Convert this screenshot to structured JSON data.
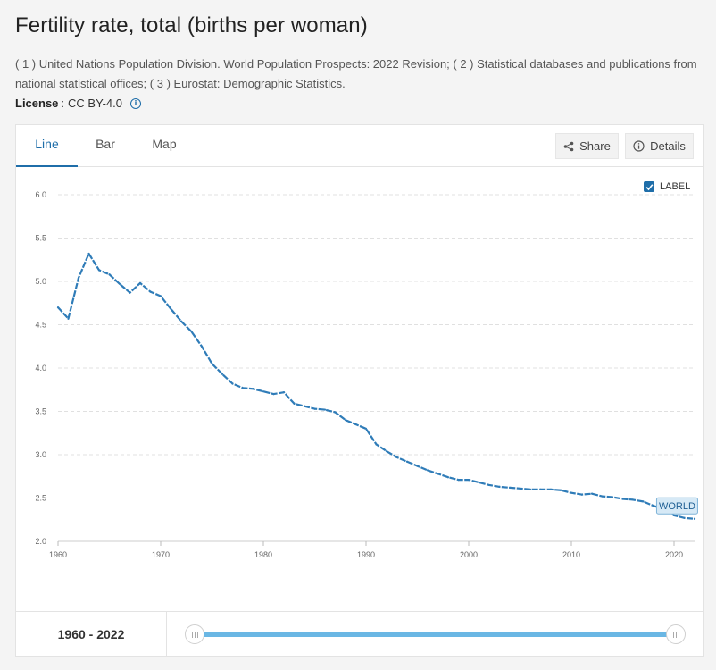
{
  "page": {
    "title": "Fertility rate, total (births per woman)",
    "sources": "( 1 ) United Nations Population Division. World Population Prospects: 2022 Revision; ( 2 ) Statistical databases and publications from national statistical offices; ( 3 ) Eurostat: Demographic Statistics.",
    "license_label": "License",
    "license_value": "CC BY-4.0"
  },
  "tabs": [
    {
      "label": "Line",
      "active": true
    },
    {
      "label": "Bar",
      "active": false
    },
    {
      "label": "Map",
      "active": false
    }
  ],
  "actions": {
    "share_label": "Share",
    "details_label": "Details"
  },
  "label_toggle": {
    "label": "LABEL",
    "checked": true
  },
  "range": {
    "label": "1960 - 2022"
  },
  "colors": {
    "line": "#2f7cb8",
    "accent": "#1f6ea9",
    "slider": "#6ab7e4",
    "series_label_bg": "#d6e9f6"
  },
  "chart_data": {
    "type": "line",
    "title": "",
    "xlabel": "",
    "ylabel": "",
    "xlim": [
      1960,
      2022
    ],
    "ylim": [
      2.0,
      6.0
    ],
    "x_ticks": [
      1960,
      1970,
      1980,
      1990,
      2000,
      2010,
      2020
    ],
    "y_ticks": [
      2.0,
      2.5,
      3.0,
      3.5,
      4.0,
      4.5,
      5.0,
      5.5,
      6.0
    ],
    "grid": true,
    "series": [
      {
        "name": "WORLD",
        "x": [
          1960,
          1961,
          1962,
          1963,
          1964,
          1965,
          1966,
          1967,
          1968,
          1969,
          1970,
          1971,
          1972,
          1973,
          1974,
          1975,
          1976,
          1977,
          1978,
          1979,
          1980,
          1981,
          1982,
          1983,
          1984,
          1985,
          1986,
          1987,
          1988,
          1989,
          1990,
          1991,
          1992,
          1993,
          1994,
          1995,
          1996,
          1997,
          1998,
          1999,
          2000,
          2001,
          2002,
          2003,
          2004,
          2005,
          2006,
          2007,
          2008,
          2009,
          2010,
          2011,
          2012,
          2013,
          2014,
          2015,
          2016,
          2017,
          2018,
          2019,
          2020,
          2021,
          2022
        ],
        "values": [
          4.7,
          4.57,
          5.04,
          5.32,
          5.13,
          5.08,
          4.97,
          4.87,
          4.98,
          4.88,
          4.83,
          4.68,
          4.54,
          4.42,
          4.25,
          4.05,
          3.93,
          3.82,
          3.77,
          3.76,
          3.73,
          3.7,
          3.72,
          3.59,
          3.56,
          3.53,
          3.52,
          3.49,
          3.4,
          3.35,
          3.3,
          3.12,
          3.04,
          2.97,
          2.92,
          2.87,
          2.82,
          2.78,
          2.74,
          2.71,
          2.71,
          2.68,
          2.65,
          2.63,
          2.62,
          2.61,
          2.6,
          2.6,
          2.6,
          2.59,
          2.56,
          2.54,
          2.55,
          2.52,
          2.51,
          2.49,
          2.48,
          2.46,
          2.41,
          2.37,
          2.3,
          2.27,
          2.26
        ]
      }
    ]
  }
}
